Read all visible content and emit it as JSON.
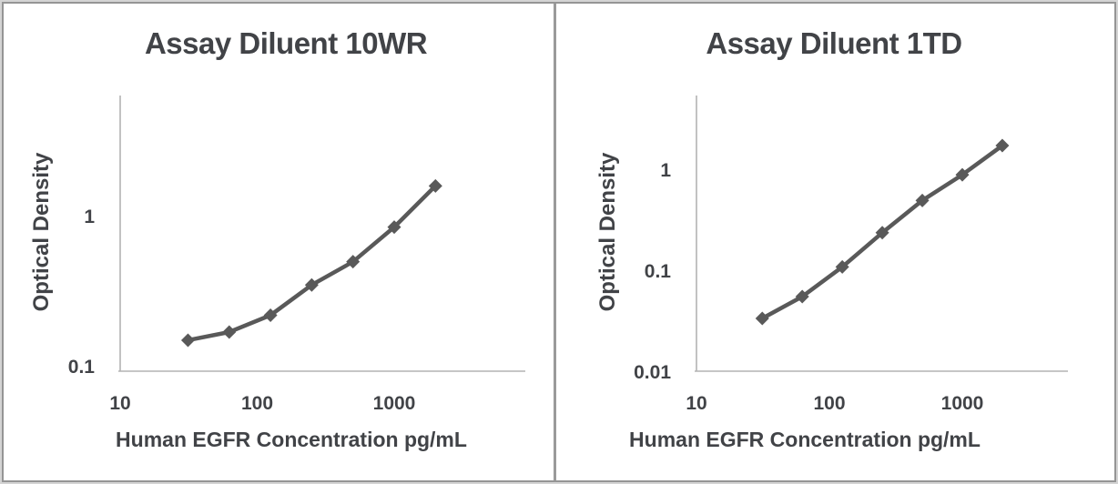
{
  "chart_data": [
    {
      "type": "line",
      "title": "Assay Diluent 10WR",
      "xlabel": "Human EGFR Concentration pg/mL",
      "ylabel": "Optical Density",
      "x_scale": "log",
      "y_scale": "log",
      "x": [
        31.25,
        62.5,
        125,
        250,
        500,
        1000,
        2000
      ],
      "y": [
        0.15,
        0.17,
        0.22,
        0.35,
        0.5,
        0.85,
        1.6
      ],
      "x_ticks": [
        10,
        100,
        1000
      ],
      "y_ticks": [
        1,
        0.1
      ],
      "xlim": [
        10,
        9000
      ],
      "ylim": [
        0.09,
        6.3
      ],
      "marker": "diamond",
      "grid": false,
      "legend": "none"
    },
    {
      "type": "line",
      "title": "Assay Diluent 1TD",
      "xlabel": "Human EGFR Concentration pg/mL",
      "ylabel": "Optical Density",
      "x_scale": "log",
      "y_scale": "log",
      "x": [
        31.25,
        62.5,
        125,
        250,
        500,
        1000,
        2000
      ],
      "y": [
        0.034,
        0.056,
        0.11,
        0.24,
        0.5,
        0.9,
        1.75
      ],
      "x_ticks": [
        10,
        100,
        1000
      ],
      "y_ticks": [
        1,
        0.1,
        0.01
      ],
      "xlim": [
        10,
        6000
      ],
      "ylim": [
        0.01,
        5.4
      ],
      "marker": "diamond",
      "grid": false,
      "legend": "none"
    }
  ],
  "colors": {
    "series": "#595959",
    "axis_line": "#b3b3b3",
    "text": "#414347",
    "divider": "#9a9a9a",
    "frame": "#959595",
    "background": "#ffffff"
  }
}
